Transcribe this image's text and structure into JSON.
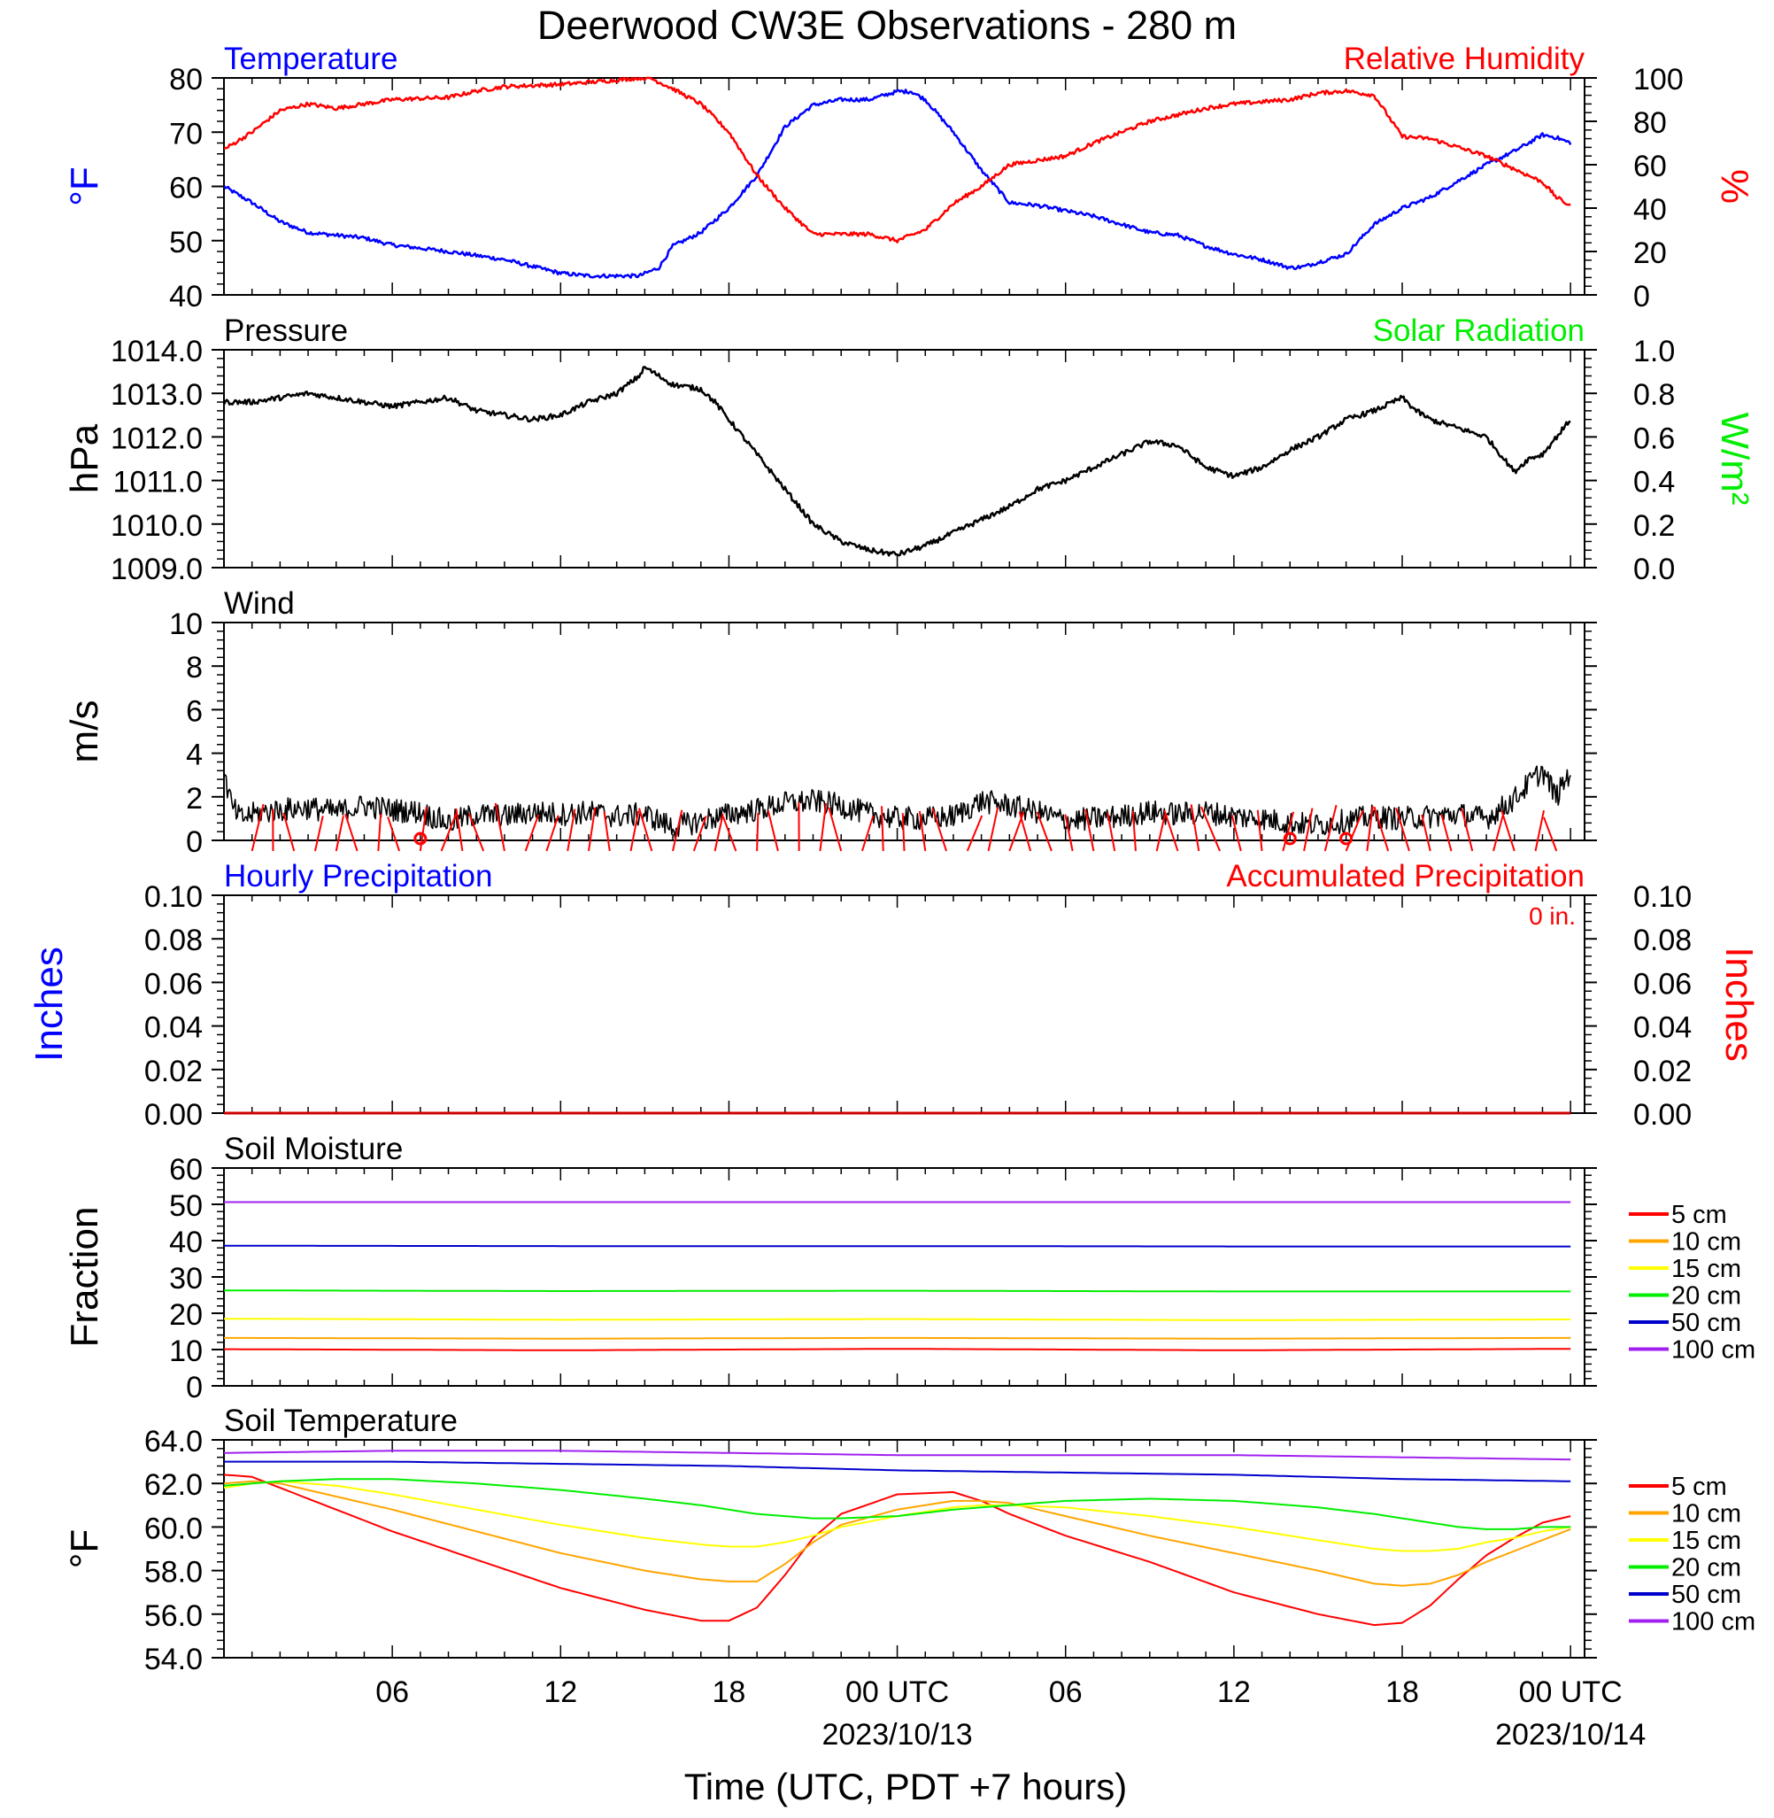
{
  "title": "Deerwood CW3E Observations - 280 m",
  "x_axis": {
    "label": "Time (UTC, PDT +7 hours)",
    "ticks": [
      {
        "hour": 6,
        "label": "06"
      },
      {
        "hour": 12,
        "label": "12"
      },
      {
        "hour": 18,
        "label": "18"
      },
      {
        "hour": 24,
        "label": "00 UTC"
      },
      {
        "hour": 30,
        "label": "06"
      },
      {
        "hour": 36,
        "label": "12"
      },
      {
        "hour": 42,
        "label": "18"
      },
      {
        "hour": 48,
        "label": "00 UTC"
      }
    ],
    "dates": [
      {
        "hour": 24,
        "label": "2023/10/13"
      },
      {
        "hour": 48,
        "label": "2023/10/14"
      }
    ]
  },
  "panels": {
    "temp_rh": {
      "left_title": "Temperature",
      "right_title": "Relative Humidity",
      "left_unit": "°F",
      "right_unit": "%"
    },
    "pressure": {
      "left_title": "Pressure",
      "right_title": "Solar Radiation",
      "left_unit": "hPa",
      "right_unit": "W/m²"
    },
    "wind": {
      "left_title": "Wind",
      "left_unit": "m/s"
    },
    "precip": {
      "left_title": "Hourly Precipitation",
      "right_title": "Accumulated Precipitation",
      "total_label": "0 in.",
      "left_unit": "Inches",
      "right_unit": "Inches"
    },
    "soil_moisture": {
      "left_title": "Soil Moisture",
      "left_unit": "Fraction"
    },
    "soil_temp": {
      "left_title": "Soil Temperature",
      "left_unit": "°F"
    }
  },
  "colors": {
    "temperature": "#0000ff",
    "humidity": "#ff0000",
    "pressure": "#000000",
    "solar": "#00ee00",
    "wind": "#000000",
    "barb": "#ff0000",
    "hourly_precip": "#0000ff",
    "accum_precip": "#cc0000"
  },
  "chart_data": [
    {
      "id": "temp_rh",
      "type": "line",
      "x_unit": "hours since 2023/10/12 00 UTC",
      "ylim": [
        40,
        80
      ],
      "y2lim": [
        0,
        100
      ],
      "yticks": [
        "40",
        "50",
        "60",
        "70",
        "80"
      ],
      "y2ticks": [
        "0",
        "20",
        "40",
        "60",
        "80",
        "100"
      ],
      "series": [
        {
          "name": "Temperature",
          "axis": "left",
          "color": "#0000ff",
          "x": [
            0,
            1,
            2,
            3,
            4,
            5,
            6,
            8,
            10,
            12,
            13,
            14,
            14.8,
            15.5,
            16,
            17,
            18,
            19,
            20,
            21,
            22,
            23,
            24,
            24.5,
            25,
            25.5,
            26,
            27,
            28,
            29,
            30,
            31,
            32,
            33,
            34,
            35,
            36,
            37,
            38,
            38.5,
            39,
            40,
            41,
            42,
            43,
            44,
            45,
            46,
            47,
            47.5,
            48
          ],
          "values": [
            60,
            57,
            53.5,
            51.5,
            51,
            50.5,
            49.2,
            48,
            46.5,
            44,
            43.5,
            43.5,
            43.5,
            45,
            49,
            51.5,
            56,
            62,
            71,
            75,
            76,
            76,
            77.5,
            77.5,
            76,
            73,
            70,
            63,
            57,
            56.5,
            55.5,
            54.5,
            53,
            51.5,
            51,
            49,
            47.5,
            46.5,
            45,
            45.2,
            46,
            47.5,
            53,
            56,
            58,
            61,
            64,
            66.5,
            69.5,
            69,
            68
          ]
        },
        {
          "name": "Relative Humidity",
          "axis": "right",
          "color": "#ff0000",
          "x": [
            0,
            1,
            2,
            3,
            4,
            6,
            8,
            9,
            10,
            12,
            13,
            14,
            14.8,
            15.2,
            16,
            17,
            18,
            19,
            20,
            21,
            22,
            23,
            24,
            25,
            26,
            27,
            28,
            29,
            30,
            31,
            32,
            33,
            34,
            35,
            36,
            37,
            38,
            39,
            40,
            41,
            42,
            43,
            44,
            45,
            46,
            47,
            47.5,
            48
          ],
          "values": [
            67,
            75,
            85,
            88,
            86,
            90,
            91,
            94,
            96,
            97,
            98,
            99,
            100,
            100,
            95,
            88,
            75,
            55,
            40,
            28,
            28,
            28,
            25,
            30,
            42,
            50,
            60,
            62,
            64,
            70,
            75,
            80,
            83,
            86,
            88,
            89,
            90,
            93,
            94,
            92,
            73,
            72,
            68,
            64,
            58,
            52,
            45,
            41
          ]
        }
      ]
    },
    {
      "id": "pressure",
      "type": "line",
      "x_unit": "hours since 2023/10/12 00 UTC",
      "ylim": [
        1009.0,
        1014.0
      ],
      "y2lim": [
        0.0,
        1.0
      ],
      "yticks": [
        "1009.0",
        "1010.0",
        "1011.0",
        "1012.0",
        "1013.0",
        "1014.0"
      ],
      "y2ticks": [
        "0.0",
        "0.2",
        "0.4",
        "0.6",
        "0.8",
        "1.0"
      ],
      "series": [
        {
          "name": "Pressure",
          "axis": "left",
          "color": "#000000",
          "x": [
            0,
            1,
            2,
            3,
            4,
            5,
            6,
            7,
            8,
            9,
            10,
            11,
            12,
            13,
            14,
            14.8,
            15,
            16,
            17,
            17.5,
            18,
            19,
            20,
            21,
            22,
            23,
            24,
            25,
            26,
            27,
            28,
            29,
            30,
            31,
            32,
            33,
            34,
            35,
            36,
            37,
            38,
            39,
            40,
            41,
            42,
            42.5,
            43,
            44,
            45,
            46,
            46.5,
            47,
            48
          ],
          "values": [
            1012.8,
            1012.8,
            1012.9,
            1013.0,
            1012.9,
            1012.8,
            1012.7,
            1012.8,
            1012.9,
            1012.6,
            1012.5,
            1012.4,
            1012.5,
            1012.8,
            1013.0,
            1013.4,
            1013.6,
            1013.2,
            1013.1,
            1012.8,
            1012.4,
            1011.6,
            1010.8,
            1010.0,
            1009.6,
            1009.4,
            1009.3,
            1009.5,
            1009.8,
            1010.1,
            1010.4,
            1010.8,
            1011.0,
            1011.3,
            1011.6,
            1011.9,
            1011.8,
            1011.3,
            1011.1,
            1011.3,
            1011.7,
            1012.0,
            1012.4,
            1012.6,
            1012.9,
            1012.6,
            1012.4,
            1012.2,
            1012.0,
            1011.2,
            1011.5,
            1011.6,
            1012.4
          ]
        }
      ]
    },
    {
      "id": "wind",
      "type": "line",
      "x_unit": "hours since 2023/10/12 00 UTC",
      "ylim": [
        0,
        10
      ],
      "yticks": [
        "0",
        "2",
        "4",
        "6",
        "8",
        "10"
      ],
      "series": [
        {
          "name": "Wind speed",
          "axis": "left",
          "color": "#000000",
          "x": [
            0,
            0.3,
            0.6,
            1,
            2,
            3,
            4,
            5,
            6,
            7,
            8,
            9,
            10,
            11,
            12,
            13,
            14,
            15,
            16,
            17,
            18,
            19,
            20,
            21,
            22,
            23,
            24,
            25,
            26,
            27,
            28,
            29,
            30,
            31,
            32,
            33,
            34,
            35,
            36,
            37,
            38,
            39,
            40,
            41,
            42,
            43,
            44,
            45,
            46,
            46.5,
            47,
            47.5,
            48
          ],
          "values": [
            3.0,
            1.5,
            1.0,
            1.2,
            1.4,
            1.5,
            1.3,
            1.6,
            1.4,
            1.3,
            0.8,
            1.2,
            1.1,
            1.3,
            1.2,
            1.3,
            1.1,
            1.2,
            0.6,
            0.9,
            1.2,
            1.4,
            1.7,
            1.8,
            1.6,
            1.2,
            1.0,
            1.0,
            1.1,
            1.8,
            1.6,
            1.3,
            0.9,
            1.0,
            1.1,
            1.3,
            1.2,
            1.3,
            1.1,
            1.0,
            0.8,
            0.7,
            0.9,
            1.1,
            1.0,
            1.1,
            1.2,
            1.0,
            1.9,
            2.6,
            3.2,
            2.0,
            3.2
          ]
        }
      ],
      "calm_hours": [
        7,
        38,
        40
      ]
    },
    {
      "id": "precip",
      "type": "line",
      "x_unit": "hours since 2023/10/12 00 UTC",
      "ylim": [
        0.0,
        0.1
      ],
      "y2lim": [
        0.0,
        0.1
      ],
      "yticks": [
        "0.00",
        "0.02",
        "0.04",
        "0.06",
        "0.08",
        "0.10"
      ],
      "y2ticks": [
        "0.00",
        "0.02",
        "0.04",
        "0.06",
        "0.08",
        "0.10"
      ],
      "series": [
        {
          "name": "Hourly Precipitation",
          "axis": "left",
          "color": "#0000ff",
          "x": [
            0,
            48
          ],
          "values": [
            0,
            0
          ]
        },
        {
          "name": "Accumulated Precipitation",
          "axis": "right",
          "color": "#cc0000",
          "x": [
            0,
            48
          ],
          "values": [
            0,
            0
          ]
        }
      ]
    },
    {
      "id": "soil_moisture",
      "type": "line",
      "x_unit": "hours since 2023/10/12 00 UTC",
      "ylim": [
        0,
        60
      ],
      "yticks": [
        "0",
        "10",
        "20",
        "30",
        "40",
        "50",
        "60"
      ],
      "series": [
        {
          "name": "5 cm",
          "color": "#ff0000",
          "x": [
            0,
            12,
            24,
            36,
            48
          ],
          "values": [
            10.1,
            9.8,
            10.2,
            9.8,
            10.2
          ]
        },
        {
          "name": "10 cm",
          "color": "#ffa500",
          "x": [
            0,
            12,
            24,
            36,
            48
          ],
          "values": [
            13.2,
            13.0,
            13.2,
            13.0,
            13.2
          ]
        },
        {
          "name": "15 cm",
          "color": "#ffff00",
          "x": [
            0,
            12,
            24,
            36,
            48
          ],
          "values": [
            18.5,
            18.2,
            18.4,
            18.1,
            18.3
          ]
        },
        {
          "name": "20 cm",
          "color": "#00ee00",
          "x": [
            0,
            12,
            24,
            36,
            48
          ],
          "values": [
            26.3,
            26.1,
            26.2,
            26.0,
            26.0
          ]
        },
        {
          "name": "50 cm",
          "color": "#0000cc",
          "x": [
            0,
            12,
            24,
            36,
            48
          ],
          "values": [
            38.6,
            38.5,
            38.5,
            38.4,
            38.4
          ]
        },
        {
          "name": "100 cm",
          "color": "#a020f0",
          "x": [
            0,
            12,
            24,
            36,
            48
          ],
          "values": [
            50.6,
            50.6,
            50.6,
            50.6,
            50.6
          ]
        }
      ]
    },
    {
      "id": "soil_temp",
      "type": "line",
      "x_unit": "hours since 2023/10/12 00 UTC",
      "ylim": [
        54.0,
        64.0
      ],
      "yticks": [
        "54.0",
        "56.0",
        "58.0",
        "60.0",
        "62.0",
        "64.0"
      ],
      "series": [
        {
          "name": "5 cm",
          "color": "#ff0000",
          "x": [
            0,
            1,
            2,
            4,
            6,
            9,
            12,
            15,
            17,
            18,
            19,
            20,
            21,
            22,
            24,
            26,
            27,
            28,
            30,
            33,
            36,
            39,
            41,
            42,
            43,
            44,
            45,
            46,
            47,
            48
          ],
          "values": [
            62.4,
            62.3,
            61.8,
            60.8,
            59.8,
            58.5,
            57.2,
            56.2,
            55.7,
            55.7,
            56.3,
            57.8,
            59.5,
            60.6,
            61.5,
            61.6,
            61.2,
            60.6,
            59.6,
            58.4,
            57.0,
            56.0,
            55.5,
            55.6,
            56.4,
            57.6,
            58.7,
            59.5,
            60.2,
            60.5
          ]
        },
        {
          "name": "10 cm",
          "color": "#ffa500",
          "x": [
            0,
            1,
            2,
            4,
            6,
            9,
            12,
            15,
            17,
            18,
            19,
            20,
            21,
            22,
            24,
            26,
            27,
            28,
            30,
            33,
            36,
            39,
            41,
            42,
            43,
            44,
            45,
            46,
            47,
            48
          ],
          "values": [
            62.0,
            62.1,
            62.0,
            61.4,
            60.8,
            59.8,
            58.8,
            58.0,
            57.6,
            57.5,
            57.5,
            58.3,
            59.3,
            60.1,
            60.8,
            61.2,
            61.2,
            61.1,
            60.5,
            59.6,
            58.8,
            58.0,
            57.4,
            57.3,
            57.4,
            57.8,
            58.4,
            58.9,
            59.4,
            59.9
          ]
        },
        {
          "name": "15 cm",
          "color": "#ffff00",
          "x": [
            0,
            1,
            2,
            4,
            6,
            9,
            12,
            15,
            17,
            18,
            19,
            20,
            21,
            22,
            24,
            26,
            27,
            28,
            30,
            33,
            36,
            39,
            41,
            42,
            43,
            44,
            45,
            46,
            47,
            48
          ],
          "values": [
            61.8,
            62.0,
            62.1,
            61.9,
            61.5,
            60.8,
            60.1,
            59.5,
            59.2,
            59.1,
            59.1,
            59.3,
            59.6,
            60.0,
            60.5,
            60.9,
            61.0,
            61.0,
            60.9,
            60.5,
            60.0,
            59.4,
            59.0,
            58.9,
            58.9,
            59.0,
            59.3,
            59.5,
            59.8,
            60.0
          ]
        },
        {
          "name": "20 cm",
          "color": "#00ee00",
          "x": [
            0,
            1,
            2,
            4,
            6,
            9,
            12,
            15,
            17,
            18,
            19,
            20,
            21,
            22,
            24,
            26,
            27,
            28,
            30,
            33,
            36,
            39,
            41,
            42,
            43,
            44,
            45,
            46,
            47,
            48
          ],
          "values": [
            61.9,
            62.0,
            62.1,
            62.2,
            62.2,
            62.0,
            61.7,
            61.3,
            61.0,
            60.8,
            60.6,
            60.5,
            60.4,
            60.4,
            60.5,
            60.8,
            60.9,
            61.0,
            61.2,
            61.3,
            61.2,
            60.9,
            60.6,
            60.4,
            60.2,
            60.0,
            59.9,
            59.9,
            60.0,
            60.0
          ]
        },
        {
          "name": "50 cm",
          "color": "#0000cc",
          "x": [
            0,
            6,
            12,
            18,
            24,
            30,
            36,
            42,
            48
          ],
          "values": [
            63.0,
            63.0,
            62.9,
            62.8,
            62.6,
            62.5,
            62.4,
            62.2,
            62.1
          ]
        },
        {
          "name": "100 cm",
          "color": "#a020f0",
          "x": [
            0,
            6,
            12,
            18,
            24,
            30,
            36,
            42,
            48
          ],
          "values": [
            63.4,
            63.5,
            63.5,
            63.4,
            63.3,
            63.3,
            63.3,
            63.2,
            63.1
          ]
        }
      ]
    }
  ],
  "legend": [
    "5 cm",
    "10 cm",
    "15 cm",
    "20 cm",
    "50 cm",
    "100 cm"
  ]
}
